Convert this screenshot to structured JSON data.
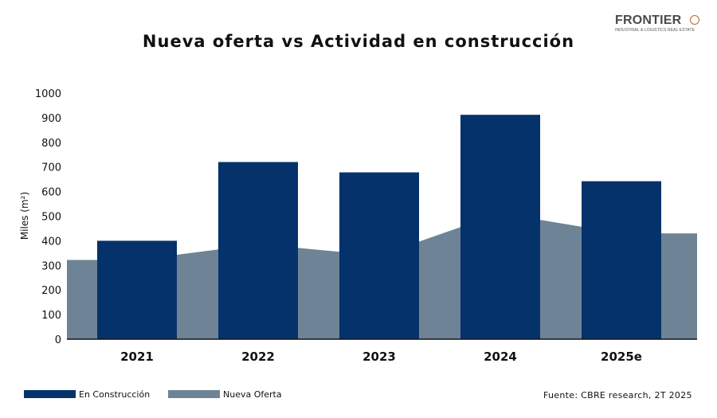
{
  "logo": {
    "name": "FRONTIER",
    "tagline": "INDUSTRIAL & LOGISTICS REAL ESTATE"
  },
  "colors": {
    "construction": "#05326a",
    "new_supply": "#6e8496",
    "logo_accent": "#c0602e"
  },
  "source": "Fuente: CBRE research, 2T 2025",
  "chart_data": {
    "type": "bar",
    "title": "Nueva oferta vs Actividad en construcción",
    "xlabel": "",
    "ylabel": "Miles (m²)",
    "ylim": [
      0,
      1000
    ],
    "yticks": [
      0,
      100,
      200,
      300,
      400,
      500,
      600,
      700,
      800,
      900,
      1000
    ],
    "grid": false,
    "legend_position": "bottom-left",
    "categories": [
      "2021",
      "2022",
      "2023",
      "2024",
      "2025e"
    ],
    "series": [
      {
        "name": "En Construcción",
        "type": "bar",
        "color": "#05326a",
        "values": [
          400,
          720,
          678,
          912,
          642
        ]
      },
      {
        "name": "Nueva Oferta",
        "type": "area",
        "color": "#6e8496",
        "values": [
          322,
          386,
          340,
          512,
          430
        ]
      }
    ]
  }
}
